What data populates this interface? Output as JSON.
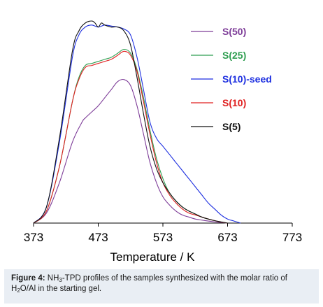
{
  "chart_data": {
    "type": "line",
    "xlabel": "Temperature / K",
    "ylabel": "",
    "xlim": [
      373,
      773
    ],
    "ylim": [
      0,
      1
    ],
    "x_ticks": [
      373,
      473,
      573,
      673,
      773
    ],
    "grid": false,
    "legend_position": "top-right",
    "series": [
      {
        "name": "S(50)",
        "color": "#7d3c98",
        "x": [
          373,
          393,
          413,
          433,
          448,
          453,
          463,
          473,
          483,
          493,
          503,
          513,
          523,
          533,
          543,
          553,
          563,
          573,
          583,
          593,
          603,
          613,
          623,
          633,
          643,
          653,
          663,
          673
        ],
        "y": [
          0.0,
          0.05,
          0.2,
          0.4,
          0.5,
          0.52,
          0.55,
          0.58,
          0.62,
          0.66,
          0.7,
          0.71,
          0.68,
          0.58,
          0.44,
          0.3,
          0.2,
          0.13,
          0.09,
          0.06,
          0.04,
          0.03,
          0.02,
          0.015,
          0.01,
          0.006,
          0.003,
          0.0
        ]
      },
      {
        "name": "S(25)",
        "color": "#2e9e50",
        "x": [
          373,
          393,
          413,
          433,
          443,
          453,
          463,
          473,
          483,
          493,
          503,
          513,
          523,
          533,
          543,
          553,
          563,
          573,
          583,
          593,
          603,
          613,
          623,
          633,
          643,
          653,
          663,
          673
        ],
        "y": [
          0.0,
          0.06,
          0.28,
          0.6,
          0.72,
          0.78,
          0.79,
          0.8,
          0.81,
          0.82,
          0.84,
          0.86,
          0.84,
          0.76,
          0.62,
          0.46,
          0.32,
          0.22,
          0.15,
          0.11,
          0.08,
          0.06,
          0.045,
          0.03,
          0.02,
          0.012,
          0.005,
          0.0
        ]
      },
      {
        "name": "S(10)-seed",
        "color": "#1d2fe0",
        "x": [
          373,
          393,
          413,
          433,
          443,
          453,
          463,
          473,
          483,
          493,
          503,
          513,
          523,
          533,
          543,
          553,
          563,
          573,
          583,
          593,
          603,
          613,
          623,
          633,
          643,
          653,
          663,
          673,
          683,
          693
        ],
        "y": [
          0.0,
          0.08,
          0.4,
          0.82,
          0.93,
          0.97,
          0.98,
          0.97,
          0.98,
          0.975,
          0.97,
          0.96,
          0.93,
          0.82,
          0.66,
          0.5,
          0.42,
          0.38,
          0.34,
          0.3,
          0.26,
          0.22,
          0.18,
          0.14,
          0.1,
          0.07,
          0.04,
          0.02,
          0.01,
          0.0
        ]
      },
      {
        "name": "S(10)",
        "color": "#e02020",
        "x": [
          373,
          393,
          413,
          433,
          443,
          453,
          463,
          473,
          483,
          493,
          503,
          513,
          523,
          533,
          543,
          553,
          563,
          573,
          583,
          593,
          603,
          613,
          623,
          633,
          643,
          653,
          663,
          673
        ],
        "y": [
          0.0,
          0.06,
          0.28,
          0.6,
          0.71,
          0.77,
          0.78,
          0.79,
          0.8,
          0.81,
          0.83,
          0.85,
          0.83,
          0.75,
          0.6,
          0.44,
          0.3,
          0.2,
          0.14,
          0.1,
          0.07,
          0.05,
          0.04,
          0.03,
          0.02,
          0.012,
          0.005,
          0.0
        ]
      },
      {
        "name": "S(5)",
        "color": "#111111",
        "x": [
          373,
          393,
          413,
          433,
          443,
          453,
          463,
          468,
          473,
          478,
          483,
          493,
          503,
          513,
          523,
          533,
          543,
          553,
          563,
          573,
          583,
          593,
          603,
          613,
          623,
          633,
          643,
          653,
          663,
          673
        ],
        "y": [
          0.0,
          0.08,
          0.42,
          0.85,
          0.95,
          0.99,
          1.0,
          0.99,
          0.97,
          0.99,
          0.98,
          0.97,
          0.97,
          0.95,
          0.88,
          0.72,
          0.54,
          0.38,
          0.27,
          0.2,
          0.15,
          0.11,
          0.08,
          0.06,
          0.045,
          0.03,
          0.02,
          0.012,
          0.006,
          0.0
        ]
      }
    ]
  },
  "caption": {
    "label": "Figure 4:",
    "text_a": "NH",
    "sub_a": "3",
    "text_b": "-TPD profiles of the samples synthesized with the molar ratio of H",
    "sub_b": "2",
    "text_c": "O/Al in the starting gel."
  }
}
